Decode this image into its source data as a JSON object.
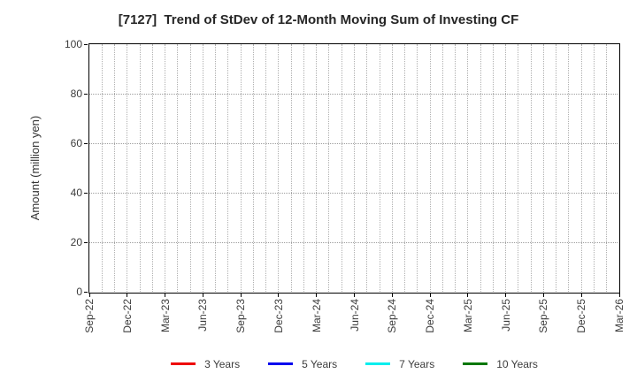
{
  "title": "[7127]  Trend of StDev of 12-Month Moving Sum of Investing CF",
  "chart_data": {
    "type": "line",
    "title": "[7127]  Trend of StDev of 12-Month Moving Sum of Investing CF",
    "xlabel": "",
    "ylabel": "Amount (million yen)",
    "ylim": [
      0,
      100
    ],
    "yticks": [
      0,
      20,
      40,
      60,
      80,
      100
    ],
    "x_tick_labels": [
      "Sep-22",
      "Dec-22",
      "Mar-23",
      "Jun-23",
      "Sep-23",
      "Dec-23",
      "Mar-24",
      "Jun-24",
      "Sep-24",
      "Dec-24",
      "Mar-25",
      "Jun-25",
      "Sep-25",
      "Dec-25",
      "Mar-26"
    ],
    "months_per_major_tick": 3,
    "grid": true,
    "grid_style": "dotted",
    "legend_position": "bottom-center",
    "series": [
      {
        "name": "3 Years",
        "color": "#ee0000",
        "values": []
      },
      {
        "name": "5 Years",
        "color": "#0000ee",
        "values": []
      },
      {
        "name": "7 Years",
        "color": "#00eeee",
        "values": []
      },
      {
        "name": "10 Years",
        "color": "#007700",
        "values": []
      }
    ]
  }
}
